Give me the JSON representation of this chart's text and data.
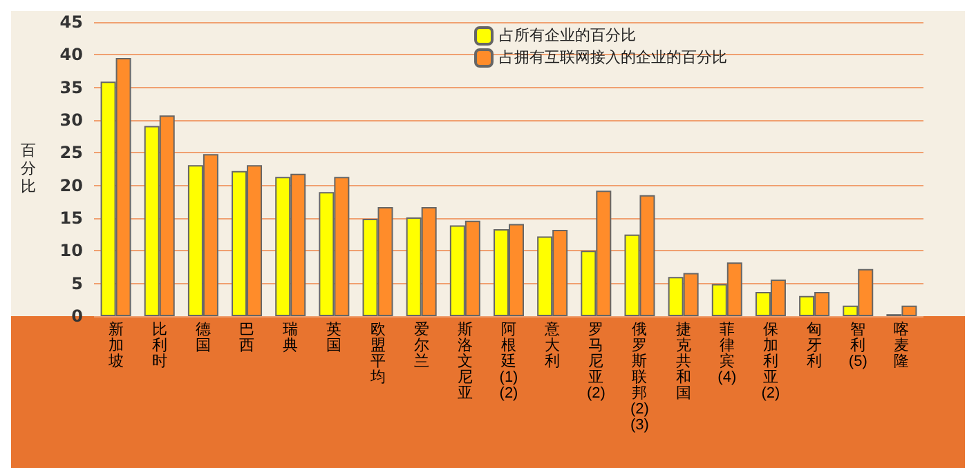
{
  "chart_data": {
    "type": "bar",
    "ylabel": "百分比",
    "categories": [
      "新加坡",
      "比利时",
      "德国",
      "巴西",
      "瑞典",
      "英国",
      "欧盟平均",
      "爱尔兰",
      "斯洛文尼亚",
      "阿根廷(1)(2)",
      "意大利",
      "罗马尼亚(2)",
      "俄罗斯联邦(2)(3)",
      "捷克共和国",
      "菲律宾(4)",
      "保加利亚(2)",
      "匈牙利",
      "智利(5)",
      "喀麦隆"
    ],
    "series": [
      {
        "name": "占所有企业的百分比",
        "color": "#ffff00",
        "values": [
          35.9,
          29.1,
          23.1,
          22.2,
          21.3,
          19.0,
          14.9,
          15.1,
          13.9,
          13.3,
          12.2,
          10.0,
          12.5,
          6.0,
          4.9,
          3.7,
          3.1,
          1.6,
          0.3
        ]
      },
      {
        "name": "占拥有互联网接入的企业的百分比",
        "color": "#ff8c2a",
        "values": [
          39.5,
          30.7,
          24.8,
          23.1,
          21.8,
          21.3,
          16.7,
          16.7,
          14.6,
          14.1,
          13.2,
          19.2,
          18.5,
          6.6,
          8.2,
          5.6,
          3.7,
          7.2,
          1.6
        ]
      }
    ],
    "ylim": [
      0,
      45
    ],
    "yticks": [
      0,
      5,
      10,
      15,
      20,
      25,
      30,
      35,
      40,
      45
    ],
    "grid": "y",
    "legend": "top"
  }
}
